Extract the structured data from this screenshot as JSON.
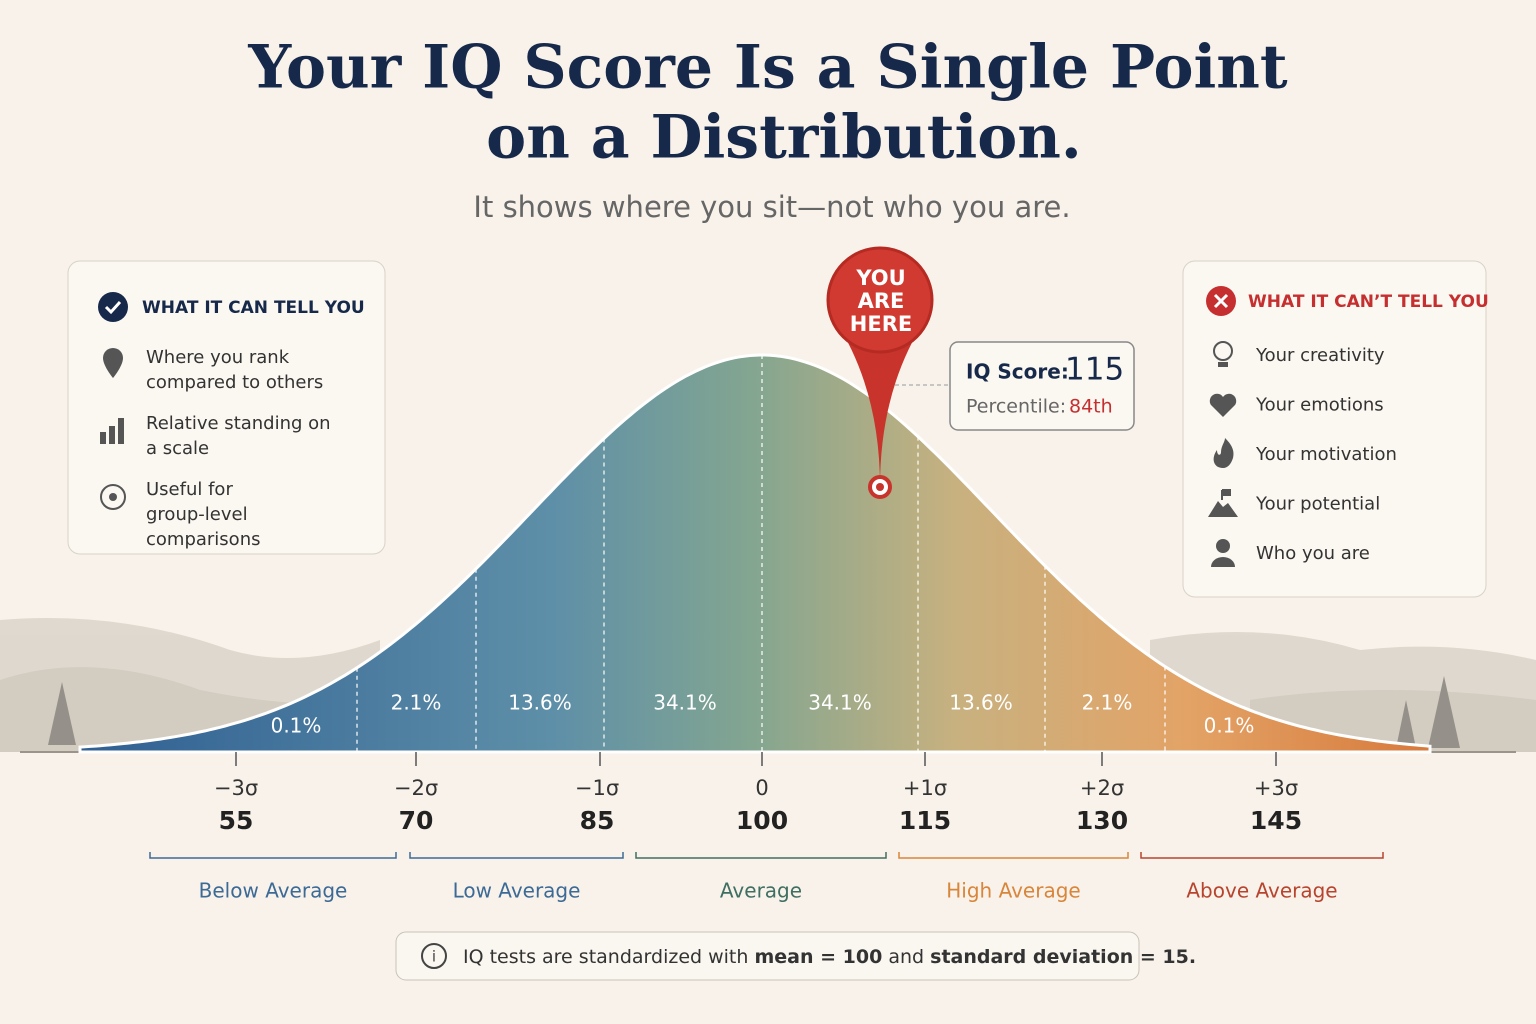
{
  "header": {
    "title_lines": [
      "Your IQ Score Is a Single Point",
      "on a Distribution."
    ],
    "subtitle": "It shows where you sit—not who you are."
  },
  "can_panel": {
    "heading": "WHAT IT CAN TELL YOU",
    "items": [
      "Where you rank compared to others",
      "Relative standing on a scale",
      "Useful for group-level comparisons"
    ]
  },
  "cant_panel": {
    "heading": "WHAT IT CAN’T TELL YOU",
    "items": [
      "Your creativity",
      "Your emotions",
      "Your motivation",
      "Your potential",
      "Who you are"
    ]
  },
  "pin": {
    "lines": [
      "YOU",
      "ARE",
      "HERE"
    ]
  },
  "score_box": {
    "score_label": "IQ Score:",
    "score": "115",
    "percentile_label": "Percentile:",
    "percentile": "84th"
  },
  "segments": [
    "0.1%",
    "2.1%",
    "13.6%",
    "34.1%",
    "34.1%",
    "13.6%",
    "2.1%",
    "0.1%"
  ],
  "axis": {
    "sigmas": [
      "−3σ",
      "−2σ",
      "−1σ",
      "0",
      "+1σ",
      "+2σ",
      "+3σ"
    ],
    "scores": [
      "55",
      "70",
      "85",
      "100",
      "115",
      "130",
      "145"
    ]
  },
  "bands": [
    "Below Average",
    "Low Average",
    "Average",
    "High Average",
    "Above Average"
  ],
  "footnote": {
    "parts": [
      "IQ tests are standardized with ",
      "mean = 100",
      " and ",
      "standard deviation = 15."
    ]
  }
}
